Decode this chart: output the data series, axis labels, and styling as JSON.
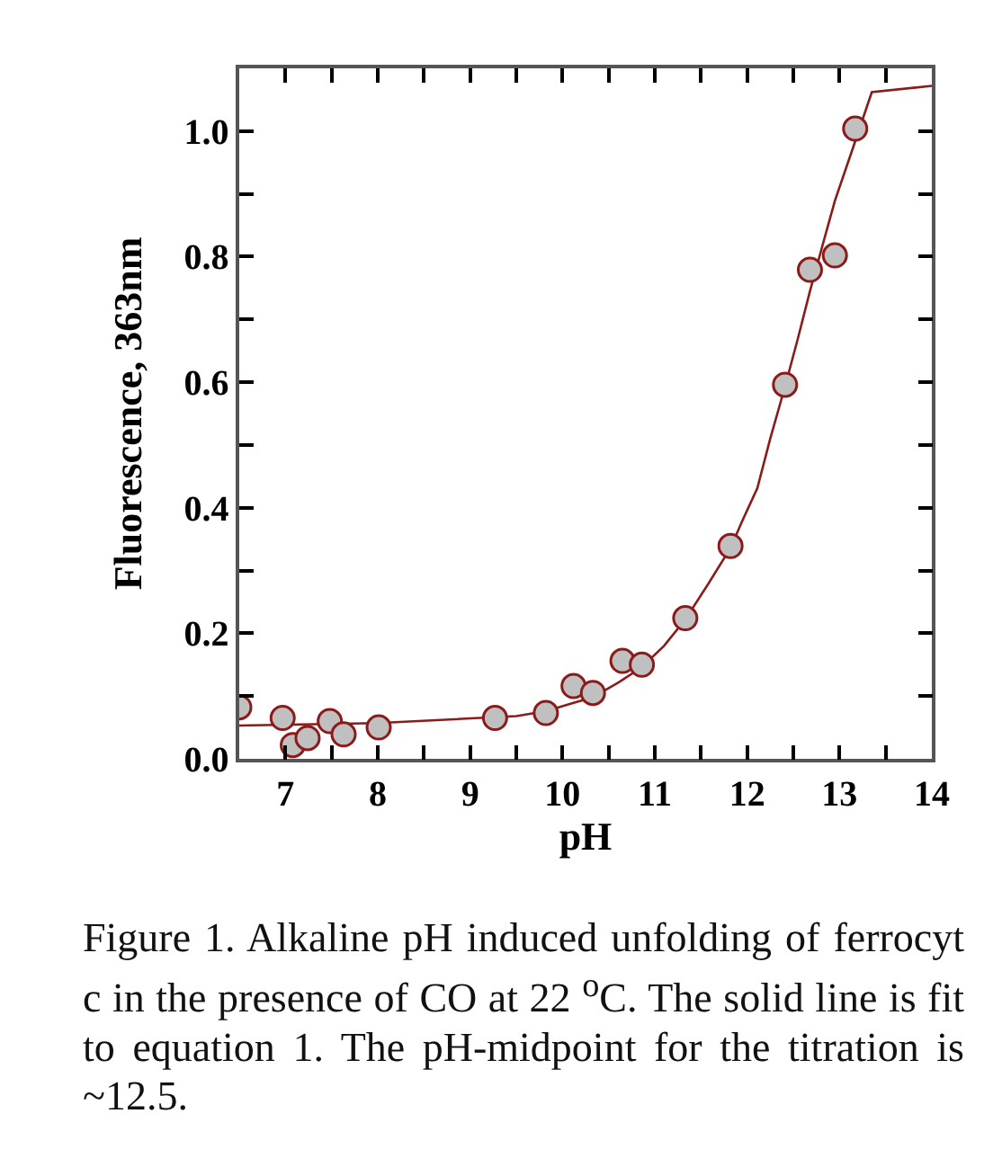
{
  "chart_data": {
    "type": "scatter",
    "xlabel": "pH",
    "ylabel": "Fluorescence, 363nm",
    "xlim": [
      6.5,
      14
    ],
    "ylim": [
      0,
      1.1
    ],
    "xticks": [
      {
        "value": 6.5,
        "label": null
      },
      7,
      {
        "value": 7.5,
        "label": null
      },
      8,
      {
        "value": 8.5,
        "label": null
      },
      9,
      {
        "value": 9.5,
        "label": null
      },
      10,
      {
        "value": 10.5,
        "label": null
      },
      11,
      {
        "value": 11.5,
        "label": null
      },
      12,
      {
        "value": 12.5,
        "label": null
      },
      13,
      {
        "value": 13.5,
        "label": null
      },
      14
    ],
    "yticks": [
      {
        "value": 0,
        "label": "0.0"
      },
      {
        "value": 0.1,
        "label": null
      },
      {
        "value": 0.2,
        "label": "0.2"
      },
      {
        "value": 0.3,
        "label": null
      },
      {
        "value": 0.4,
        "label": "0.4"
      },
      {
        "value": 0.5,
        "label": null
      },
      {
        "value": 0.6,
        "label": "0.6"
      },
      {
        "value": 0.7,
        "label": null
      },
      {
        "value": 0.8,
        "label": "0.8"
      },
      {
        "value": 0.9,
        "label": null
      },
      {
        "value": 1,
        "label": "1.0"
      }
    ],
    "grid": false,
    "legend": false,
    "series": [
      {
        "marker": "circle",
        "color": "#c0c0c0",
        "x": [
          6.5,
          6.97,
          7.08,
          7.24,
          7.48,
          7.63,
          8.01,
          9.27,
          9.82,
          10.12,
          10.33,
          10.65,
          10.86,
          11.33,
          11.82,
          12.41,
          12.68,
          12.95,
          13.17
        ],
        "values": [
          0.082,
          0.065,
          0.022,
          0.033,
          0.06,
          0.039,
          0.05,
          0.065,
          0.073,
          0.116,
          0.105,
          0.156,
          0.15,
          0.224,
          0.339,
          0.596,
          0.779,
          0.802,
          1.004
        ]
      },
      {
        "type": "line",
        "marker": "none",
        "color": "#8b1a1a",
        "line_style": "solid",
        "x": [
          6.5,
          8,
          9.5,
          9.82,
          10.12,
          10.33,
          10.61,
          10.86,
          11.1,
          11.33,
          11.58,
          11.82,
          11.95,
          12.11,
          12.25,
          12.41,
          12.55,
          12.68,
          12.82,
          12.95,
          13.15,
          13.35,
          14
        ],
        "values": [
          0.053,
          0.057,
          0.068,
          0.076,
          0.089,
          0.098,
          0.122,
          0.146,
          0.18,
          0.222,
          0.279,
          0.336,
          0.38,
          0.431,
          0.51,
          0.593,
          0.67,
          0.745,
          0.82,
          0.889,
          0.975,
          1.062,
          1.072
        ]
      }
    ],
    "annotations": [
      "Figure 1. Alkaline pH induced unfolding of ferrocyt c in the presence of CO at 22 $^{o}$C. The solid line is fit to equation 1. The pH-midpoint for the titration is ~12.5."
    ]
  }
}
